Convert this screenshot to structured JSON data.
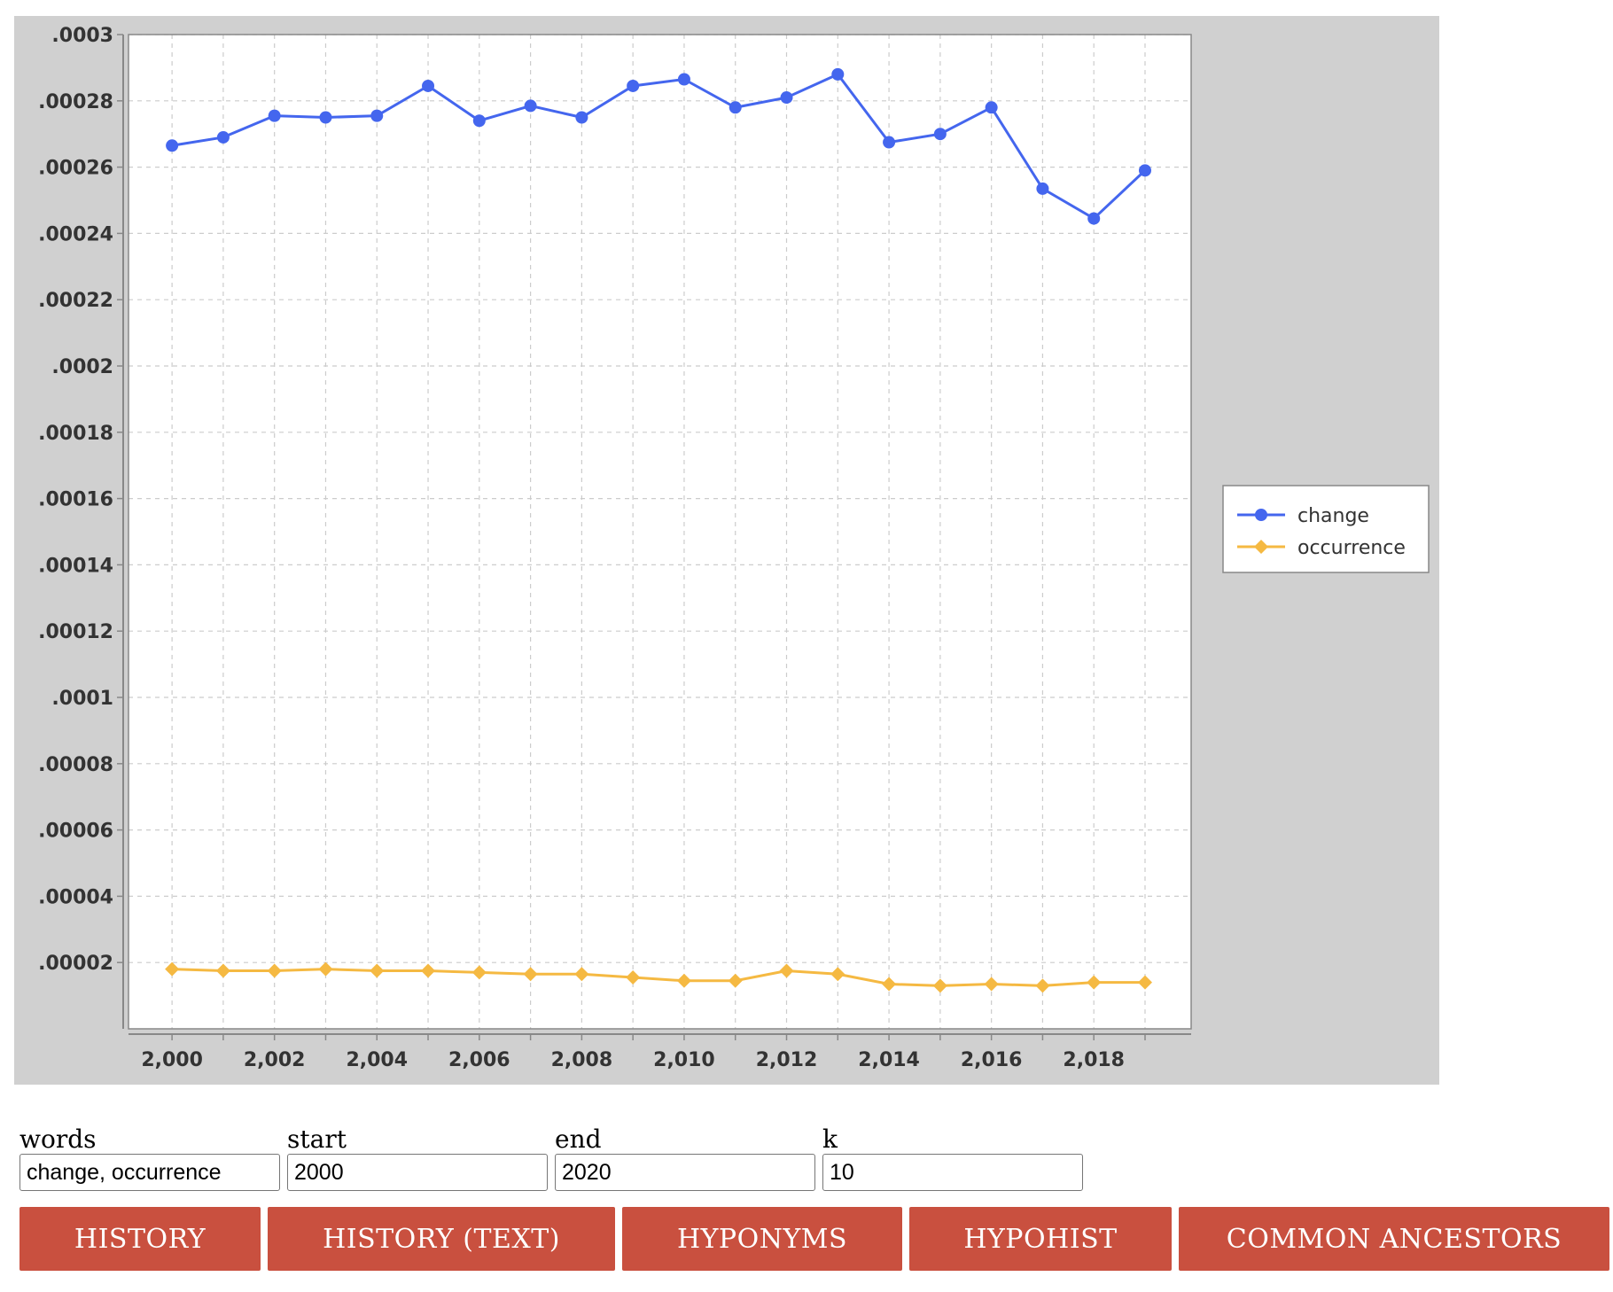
{
  "chart_data": {
    "type": "line",
    "title": "",
    "xlabel": "",
    "ylabel": "",
    "x": [
      2000,
      2001,
      2002,
      2003,
      2004,
      2005,
      2006,
      2007,
      2008,
      2009,
      2010,
      2011,
      2012,
      2013,
      2014,
      2015,
      2016,
      2017,
      2018,
      2019
    ],
    "xlim": [
      1999.15,
      2019.9
    ],
    "ylim": [
      0,
      0.0003
    ],
    "x_ticks": [
      "2,000",
      "2,002",
      "2,004",
      "2,006",
      "2,008",
      "2,010",
      "2,012",
      "2,014",
      "2,016",
      "2,018"
    ],
    "y_ticks": [
      ".00002",
      ".00004",
      ".00006",
      ".00008",
      ".0001",
      ".00012",
      ".00014",
      ".00016",
      ".00018",
      ".0002",
      ".00022",
      ".00024",
      ".00026",
      ".00028",
      ".0003"
    ],
    "grid": true,
    "legend_position": "right",
    "series": [
      {
        "name": "change",
        "color": "#4466ee",
        "marker": "circle",
        "values": [
          0.0002665,
          0.000269,
          0.0002755,
          0.000275,
          0.0002755,
          0.0002845,
          0.000274,
          0.0002785,
          0.000275,
          0.0002845,
          0.0002865,
          0.000278,
          0.000281,
          0.000288,
          0.0002675,
          0.00027,
          0.000278,
          0.0002535,
          0.0002445,
          0.000259
        ]
      },
      {
        "name": "occurrence",
        "color": "#f5b942",
        "marker": "diamond",
        "values": [
          1.8e-05,
          1.75e-05,
          1.75e-05,
          1.8e-05,
          1.75e-05,
          1.75e-05,
          1.7e-05,
          1.65e-05,
          1.65e-05,
          1.55e-05,
          1.45e-05,
          1.45e-05,
          1.75e-05,
          1.65e-05,
          1.35e-05,
          1.3e-05,
          1.35e-05,
          1.3e-05,
          1.4e-05,
          1.4e-05
        ]
      }
    ]
  },
  "form": {
    "words_label": "words",
    "words_value": "change, occurrence",
    "start_label": "start",
    "start_value": "2000",
    "end_label": "end",
    "end_value": "2020",
    "k_label": "k",
    "k_value": "10"
  },
  "buttons": {
    "history": "HISTORY",
    "history_text": "HISTORY (TEXT)",
    "hyponyms": "HYPONYMS",
    "hypohist": "HYPOHIST",
    "common_ancestors": "COMMON ANCESTORS"
  },
  "colors": {
    "button_bg": "#c9503f",
    "panel_bg": "#d0d0d0"
  }
}
